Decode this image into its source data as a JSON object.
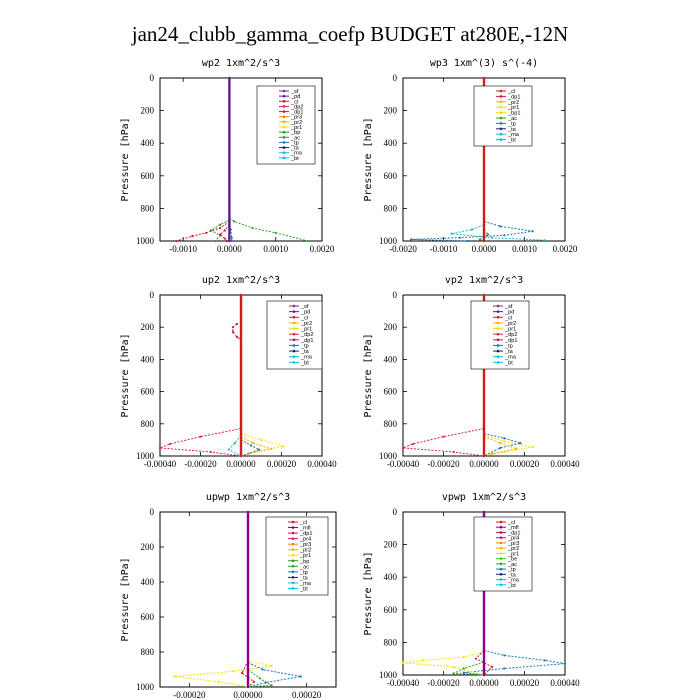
{
  "title": "jan24_clubb_gamma_coefp  BUDGET at280E,-12N",
  "colors": {
    "_sf": "#7b2d8b",
    "_pd": "#5b1e91",
    "_cl": "#d7191c",
    "_dp2": "#e0204a",
    "_dp1": "#c2185b",
    "_pr3": "#ff7f0e",
    "_pr2": "#ffb000",
    "_pr1": "#f7e200",
    "_bp": "#1f9e1f",
    "_ac": "#2ca02c",
    "_tp": "#1f77b4",
    "_ta": "#1a237e",
    "_ma": "#17becf",
    "_bt": "#00bfff",
    "_bp1": "#ffd700",
    "_mfl": "#8b008b",
    "_pr4": "#c71585",
    "_be": "#32cd32"
  },
  "chart_data": [
    {
      "id": "wp2",
      "type": "line",
      "title": "wp2  1xm^2/s^3",
      "ylabel": "Pressure [hPa]",
      "xlim": [
        -0.0015,
        0.002
      ],
      "ylim": [
        1000,
        0
      ],
      "xticks": [
        -0.001,
        0.0,
        0.001,
        0.002
      ],
      "xtick_labels": [
        "-0.0010",
        "0.0000",
        "0.0010",
        "0.0020"
      ],
      "yticks": [
        0,
        200,
        400,
        600,
        800,
        1000
      ],
      "legend": [
        "_sf",
        "_pd",
        "_cl",
        "_dp2",
        "_dp1",
        "_pr3",
        "_pr2",
        "_pr1",
        "_bp",
        "_ac",
        "_tp",
        "_ta",
        "_ma",
        "_bt"
      ],
      "series": [
        {
          "name": "_ac",
          "points": [
            [
              0,
              860
            ],
            [
              0.0001,
              880
            ],
            [
              0.0005,
              920
            ],
            [
              0.001,
              950
            ],
            [
              0.0017,
              1000
            ]
          ]
        },
        {
          "name": "_bp",
          "points": [
            [
              0,
              870
            ],
            [
              -0.0002,
              900
            ],
            [
              -0.0004,
              935
            ],
            [
              -0.0002,
              965
            ],
            [
              -0.0003,
              1000
            ]
          ]
        },
        {
          "name": "_cl",
          "points": [
            [
              0,
              880
            ],
            [
              -0.0002,
              920
            ],
            [
              -0.0005,
              950
            ],
            [
              -0.0008,
              970
            ],
            [
              -0.00115,
              1000
            ]
          ]
        },
        {
          "name": "_dp1",
          "points": [
            [
              0,
              900
            ],
            [
              -0.0001,
              935
            ],
            [
              -0.0002,
              960
            ],
            [
              -0.0001,
              985
            ],
            [
              -5e-05,
              1000
            ]
          ]
        },
        {
          "name": "_tp",
          "points": [
            [
              0,
              880
            ],
            [
              3e-05,
              930
            ],
            [
              5e-05,
              980
            ],
            [
              5e-05,
              1000
            ]
          ]
        },
        {
          "name": "_pd",
          "points": [
            [
              0,
              0
            ],
            [
              0,
              1000
            ]
          ]
        }
      ]
    },
    {
      "id": "wp3",
      "type": "line",
      "title": "wp3  1xm^(3) s^(-4)",
      "ylabel": "Pressure [hPa]",
      "xlim": [
        -0.002,
        0.002
      ],
      "ylim": [
        1000,
        0
      ],
      "xticks": [
        -0.002,
        -0.001,
        0.0,
        0.001,
        0.002
      ],
      "xtick_labels": [
        "-0.0020",
        "-0.0010",
        "0.0000",
        "0.0010",
        "0.0020"
      ],
      "yticks": [
        0,
        200,
        400,
        600,
        800,
        1000
      ],
      "legend": [
        "_cl",
        "_dp1",
        "_pr2",
        "_pr1",
        "_bp1",
        "_ac",
        "_tp",
        "_ta",
        "_ma",
        "_bt"
      ],
      "series": [
        {
          "name": "_tp",
          "points": [
            [
              0,
              880
            ],
            [
              0.0004,
              910
            ],
            [
              0.0012,
              940
            ],
            [
              0.0005,
              965
            ],
            [
              -0.0006,
              980
            ],
            [
              -0.0018,
              990
            ],
            [
              -0.0004,
              1000
            ]
          ]
        },
        {
          "name": "_ma",
          "points": [
            [
              0,
              900
            ],
            [
              -0.0003,
              930
            ],
            [
              -0.0008,
              955
            ],
            [
              0.0002,
              980
            ],
            [
              0.0015,
              995
            ]
          ]
        },
        {
          "name": "_ac",
          "points": [
            [
              0,
              930
            ],
            [
              0.0001,
              960
            ],
            [
              -0.0001,
              990
            ],
            [
              0,
              1000
            ]
          ]
        },
        {
          "name": "_cl",
          "points": [
            [
              0,
              0
            ],
            [
              0,
              1000
            ]
          ]
        }
      ]
    },
    {
      "id": "up2",
      "type": "line",
      "title": "up2  1xm^2/s^3",
      "ylabel": "Pressure [hPa]",
      "xlim": [
        -0.0004,
        0.0004
      ],
      "ylim": [
        1000,
        0
      ],
      "xticks": [
        -0.0004,
        -0.0002,
        0.0,
        0.0002,
        0.0004
      ],
      "xtick_labels": [
        "-0.00040",
        "-0.00020",
        "0.00000",
        "0.00020",
        "0.00040"
      ],
      "yticks": [
        0,
        200,
        400,
        600,
        800,
        1000
      ],
      "legend": [
        "_sf",
        "_pd",
        "_cl",
        "_pr2",
        "_pr1",
        "_dp2",
        "_dp1",
        "_tp",
        "_ta",
        "_ma",
        "_bt"
      ],
      "series": [
        {
          "name": "_dp2",
          "points": [
            [
              0,
              830
            ],
            [
              -0.0002,
              880
            ],
            [
              -0.00035,
              925
            ],
            [
              -0.0004,
              950
            ],
            [
              -0.00015,
              975
            ],
            [
              0,
              1000
            ]
          ]
        },
        {
          "name": "_pr1",
          "points": [
            [
              0,
              860
            ],
            [
              0.0001,
              900
            ],
            [
              0.00021,
              940
            ],
            [
              8e-05,
              970
            ],
            [
              0,
              1000
            ]
          ]
        },
        {
          "name": "_pr2",
          "points": [
            [
              0,
              880
            ],
            [
              6e-05,
              920
            ],
            [
              0.00015,
              955
            ],
            [
              4e-05,
              985
            ],
            [
              0,
              1000
            ]
          ]
        },
        {
          "name": "_tp",
          "points": [
            [
              0,
              900
            ],
            [
              5e-05,
              935
            ],
            [
              9e-05,
              960
            ],
            [
              0,
              1000
            ]
          ]
        },
        {
          "name": "_ma",
          "points": [
            [
              0,
              870
            ],
            [
              -3e-05,
              920
            ],
            [
              -6e-05,
              960
            ],
            [
              0,
              1000
            ]
          ]
        },
        {
          "name": "_dp1",
          "points": [
            [
              -2e-05,
              180
            ],
            [
              -4e-05,
              200
            ],
            [
              -4e-05,
              230
            ],
            [
              -2e-05,
              260
            ],
            [
              0,
              280
            ]
          ]
        },
        {
          "name": "_cl",
          "points": [
            [
              0,
              0
            ],
            [
              0,
              1000
            ]
          ]
        }
      ]
    },
    {
      "id": "vp2",
      "type": "line",
      "title": "vp2  1xm^2/s^3",
      "ylabel": "Pressure [hPa]",
      "xlim": [
        -0.0004,
        0.0004
      ],
      "ylim": [
        1000,
        0
      ],
      "xticks": [
        -0.0004,
        -0.0002,
        0.0,
        0.0002,
        0.0004
      ],
      "xtick_labels": [
        "-0.00040",
        "-0.00020",
        "0.00000",
        "0.00020",
        "0.00040"
      ],
      "yticks": [
        0,
        200,
        400,
        600,
        800,
        1000
      ],
      "legend": [
        "_sf",
        "_pd",
        "_cl",
        "_pr2",
        "_pr1",
        "_dp2",
        "_dp1",
        "_tp",
        "_ta",
        "_ma",
        "_bt"
      ],
      "series": [
        {
          "name": "_dp2",
          "points": [
            [
              0,
              830
            ],
            [
              -0.0002,
              880
            ],
            [
              -0.00035,
              925
            ],
            [
              -0.0004,
              950
            ],
            [
              -0.00015,
              975
            ],
            [
              0,
              1000
            ]
          ]
        },
        {
          "name": "_pr1",
          "points": [
            [
              0,
              870
            ],
            [
              0.0001,
              910
            ],
            [
              0.00024,
              945
            ],
            [
              0.0001,
              975
            ],
            [
              0,
              1000
            ]
          ]
        },
        {
          "name": "_tp",
          "points": [
            [
              0,
              860
            ],
            [
              0.0001,
              890
            ],
            [
              0.00018,
              920
            ],
            [
              8e-05,
              950
            ],
            [
              0,
              1000
            ]
          ]
        },
        {
          "name": "_pr2",
          "points": [
            [
              0,
              880
            ],
            [
              8e-05,
              920
            ],
            [
              0.00016,
              955
            ],
            [
              4e-05,
              985
            ],
            [
              0,
              1000
            ]
          ]
        },
        {
          "name": "_dp1",
          "points": [
            [
              -2e-05,
              180
            ],
            [
              -4e-05,
              200
            ],
            [
              -4e-05,
              230
            ],
            [
              -2e-05,
              260
            ],
            [
              0,
              280
            ]
          ]
        },
        {
          "name": "_cl",
          "points": [
            [
              0,
              0
            ],
            [
              0,
              1000
            ]
          ]
        }
      ]
    },
    {
      "id": "upwp",
      "type": "line",
      "title": "upwp  1xm^2/s^3",
      "ylabel": "Pressure [hPa]",
      "xlim": [
        -0.0003,
        0.0003
      ],
      "ylim": [
        1000,
        0
      ],
      "xticks": [
        -0.0002,
        0.0,
        0.0002
      ],
      "xtick_labels": [
        "-0.00020",
        "0.00000",
        "0.00020"
      ],
      "yticks": [
        0,
        200,
        400,
        600,
        800,
        1000
      ],
      "legend": [
        "_cl",
        "_mfl",
        "_dp1",
        "_pr4",
        "_pr3",
        "_pr2",
        "_pr1",
        "_bp",
        "_ac",
        "_tp",
        "_ta",
        "_ma",
        "_bt"
      ],
      "series": [
        {
          "name": "_pr1",
          "points": [
            [
              0,
              850
            ],
            [
              8e-05,
              880
            ],
            [
              -5e-05,
              910
            ],
            [
              -0.00025,
              940
            ],
            [
              -0.0001,
              970
            ],
            [
              0,
              1000
            ]
          ]
        },
        {
          "name": "_tp",
          "points": [
            [
              0,
              860
            ],
            [
              5e-05,
              900
            ],
            [
              0.00018,
              940
            ],
            [
              6e-05,
              975
            ],
            [
              0,
              1000
            ]
          ]
        },
        {
          "name": "_ac",
          "points": [
            [
              0,
              900
            ],
            [
              4e-05,
              950
            ],
            [
              8e-05,
              990
            ],
            [
              0,
              1000
            ]
          ]
        },
        {
          "name": "_cl",
          "points": [
            [
              0,
              850
            ],
            [
              -2e-05,
              920
            ],
            [
              2e-05,
              970
            ],
            [
              0,
              1000
            ]
          ]
        },
        {
          "name": "_mfl",
          "points": [
            [
              0,
              0
            ],
            [
              0,
              1000
            ]
          ]
        }
      ]
    },
    {
      "id": "vpwp",
      "type": "line",
      "title": "vpwp  1xm^2/s^3",
      "ylabel": "Pressure [hPa]",
      "xlim": [
        -0.0004,
        0.0004
      ],
      "ylim": [
        1000,
        0
      ],
      "xticks": [
        -0.0004,
        -0.0002,
        0.0,
        0.0002,
        0.0004
      ],
      "xtick_labels": [
        "-0.00040",
        "-0.00020",
        "0.00000",
        "0.00020",
        "0.00040"
      ],
      "yticks": [
        0,
        200,
        400,
        600,
        800,
        1000
      ],
      "legend": [
        "_cl",
        "_mfl",
        "_dp1",
        "_pr4",
        "_pr3",
        "_pr2",
        "_pr1",
        "_be",
        "_ac",
        "_tp",
        "_ta",
        "_ma",
        "_bt"
      ],
      "series": [
        {
          "name": "_tp",
          "points": [
            [
              0,
              850
            ],
            [
              0.0001,
              880
            ],
            [
              0.0003,
              910
            ],
            [
              0.0004,
              930
            ],
            [
              0.0001,
              960
            ],
            [
              -0.0001,
              985
            ],
            [
              0,
              1000
            ]
          ]
        },
        {
          "name": "_pr1",
          "points": [
            [
              0,
              860
            ],
            [
              -0.0001,
              890
            ],
            [
              -0.0003,
              910
            ],
            [
              -0.0004,
              925
            ],
            [
              -0.00015,
              950
            ],
            [
              0,
              1000
            ]
          ]
        },
        {
          "name": "_ac",
          "points": [
            [
              0,
              920
            ],
            [
              -0.0001,
              960
            ],
            [
              -0.00015,
              990
            ],
            [
              0,
              1000
            ]
          ]
        },
        {
          "name": "_cl",
          "points": [
            [
              0,
              850
            ],
            [
              -4e-05,
              900
            ],
            [
              4e-05,
              950
            ],
            [
              0,
              1000
            ]
          ]
        },
        {
          "name": "_mfl",
          "points": [
            [
              0,
              0
            ],
            [
              0,
              1000
            ]
          ]
        }
      ]
    }
  ]
}
